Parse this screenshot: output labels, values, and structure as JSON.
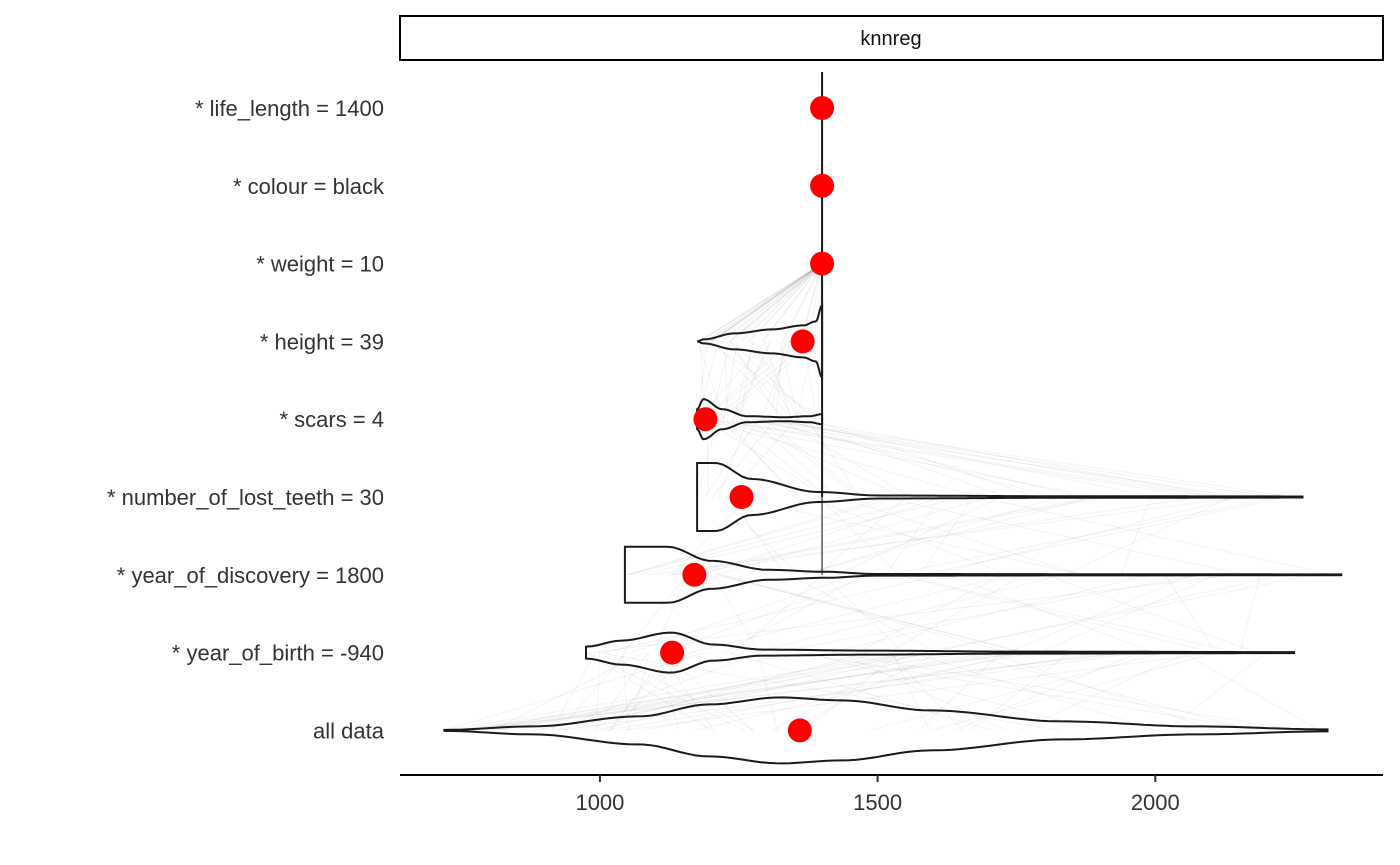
{
  "chart_data": {
    "type": "violin",
    "facet_label": "knnreg",
    "rows": [
      {
        "label": "* life_length = 1400",
        "point": 1400,
        "range": [
          1400,
          1400
        ]
      },
      {
        "label": "* colour = black",
        "point": 1400,
        "range": [
          1400,
          1400
        ]
      },
      {
        "label": "* weight = 10",
        "point": 1400,
        "range": [
          1400,
          1400
        ]
      },
      {
        "label": "* height = 39",
        "point": 1365,
        "range": [
          1175,
          1400
        ]
      },
      {
        "label": "* scars = 4",
        "point": 1190,
        "range": [
          1175,
          1400
        ]
      },
      {
        "label": "* number_of_lost_teeth = 30",
        "point": 1255,
        "range": [
          1175,
          2265
        ]
      },
      {
        "label": "* year_of_discovery = 1800",
        "point": 1170,
        "range": [
          1045,
          2335
        ]
      },
      {
        "label": "* year_of_birth = -940",
        "point": 1130,
        "range": [
          975,
          2250
        ]
      },
      {
        "label": "all data",
        "point": 1360,
        "range": [
          720,
          2310
        ]
      }
    ],
    "xlim": [
      640,
      2410
    ],
    "xticks": [
      1000,
      1500,
      2000
    ],
    "xlabel": "",
    "ylabel": "",
    "point_color": "#ff0000",
    "line_color": "#1a1a1a",
    "grid": false
  }
}
